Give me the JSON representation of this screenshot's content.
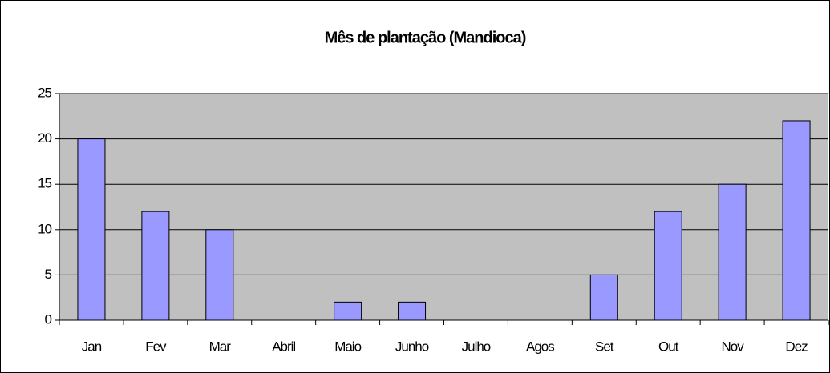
{
  "chart_data": {
    "type": "bar",
    "title": "Mês de plantação (Mandioca)",
    "categories": [
      "Jan",
      "Fev",
      "Mar",
      "Abril",
      "Maio",
      "Junho",
      "Julho",
      "Agos",
      "Set",
      "Out",
      "Nov",
      "Dez"
    ],
    "values": [
      20,
      12,
      10,
      0,
      2,
      2,
      0,
      0,
      5,
      12,
      15,
      22
    ],
    "color": "#9999ff",
    "plot_background": "#c0c0c0",
    "ylim": [
      0,
      25
    ],
    "yticks": [
      0,
      5,
      10,
      15,
      20,
      25
    ],
    "grid": true
  }
}
